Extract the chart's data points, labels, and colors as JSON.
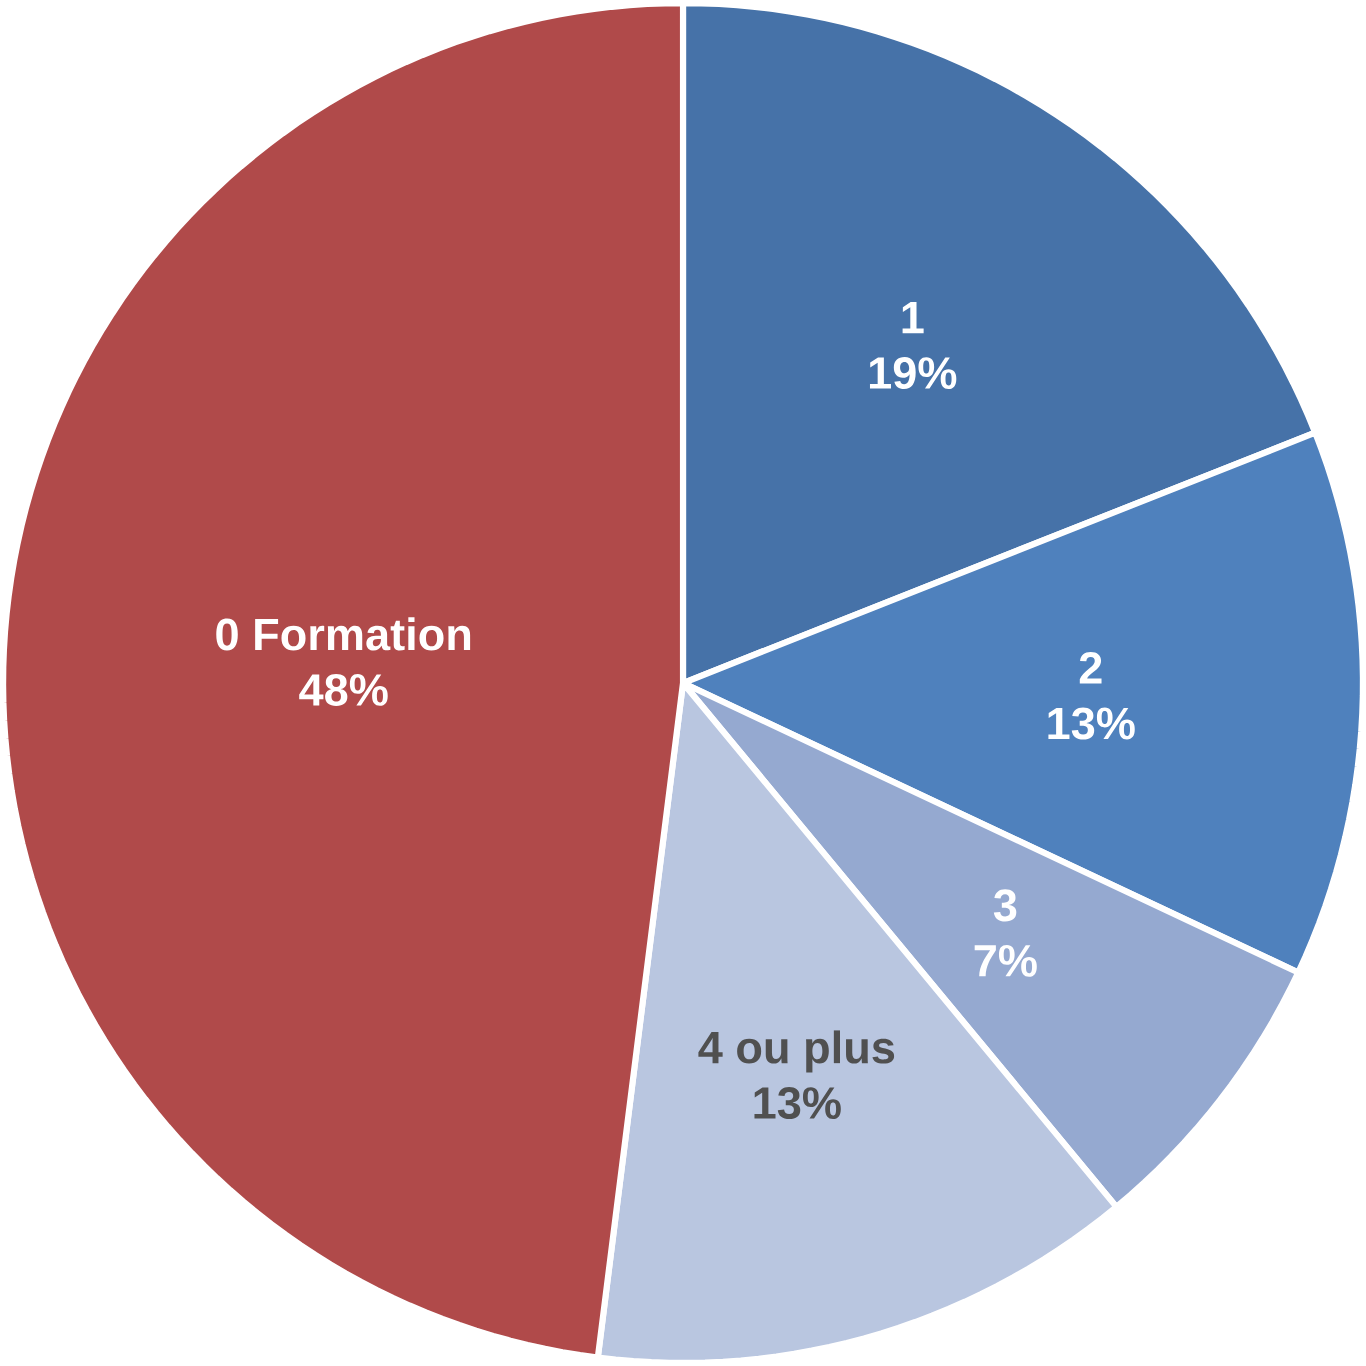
{
  "chart_data": {
    "type": "pie",
    "categories": [
      "1",
      "2",
      "3",
      "4 ou plus",
      "0 Formation"
    ],
    "values": [
      19,
      13,
      7,
      13,
      48
    ],
    "value_labels": [
      "19%",
      "13%",
      "7%",
      "13%",
      "48%"
    ],
    "colors": [
      "#4672a8",
      "#4f81bd",
      "#95a9d0",
      "#b9c6e0",
      "#b04a4a"
    ]
  }
}
